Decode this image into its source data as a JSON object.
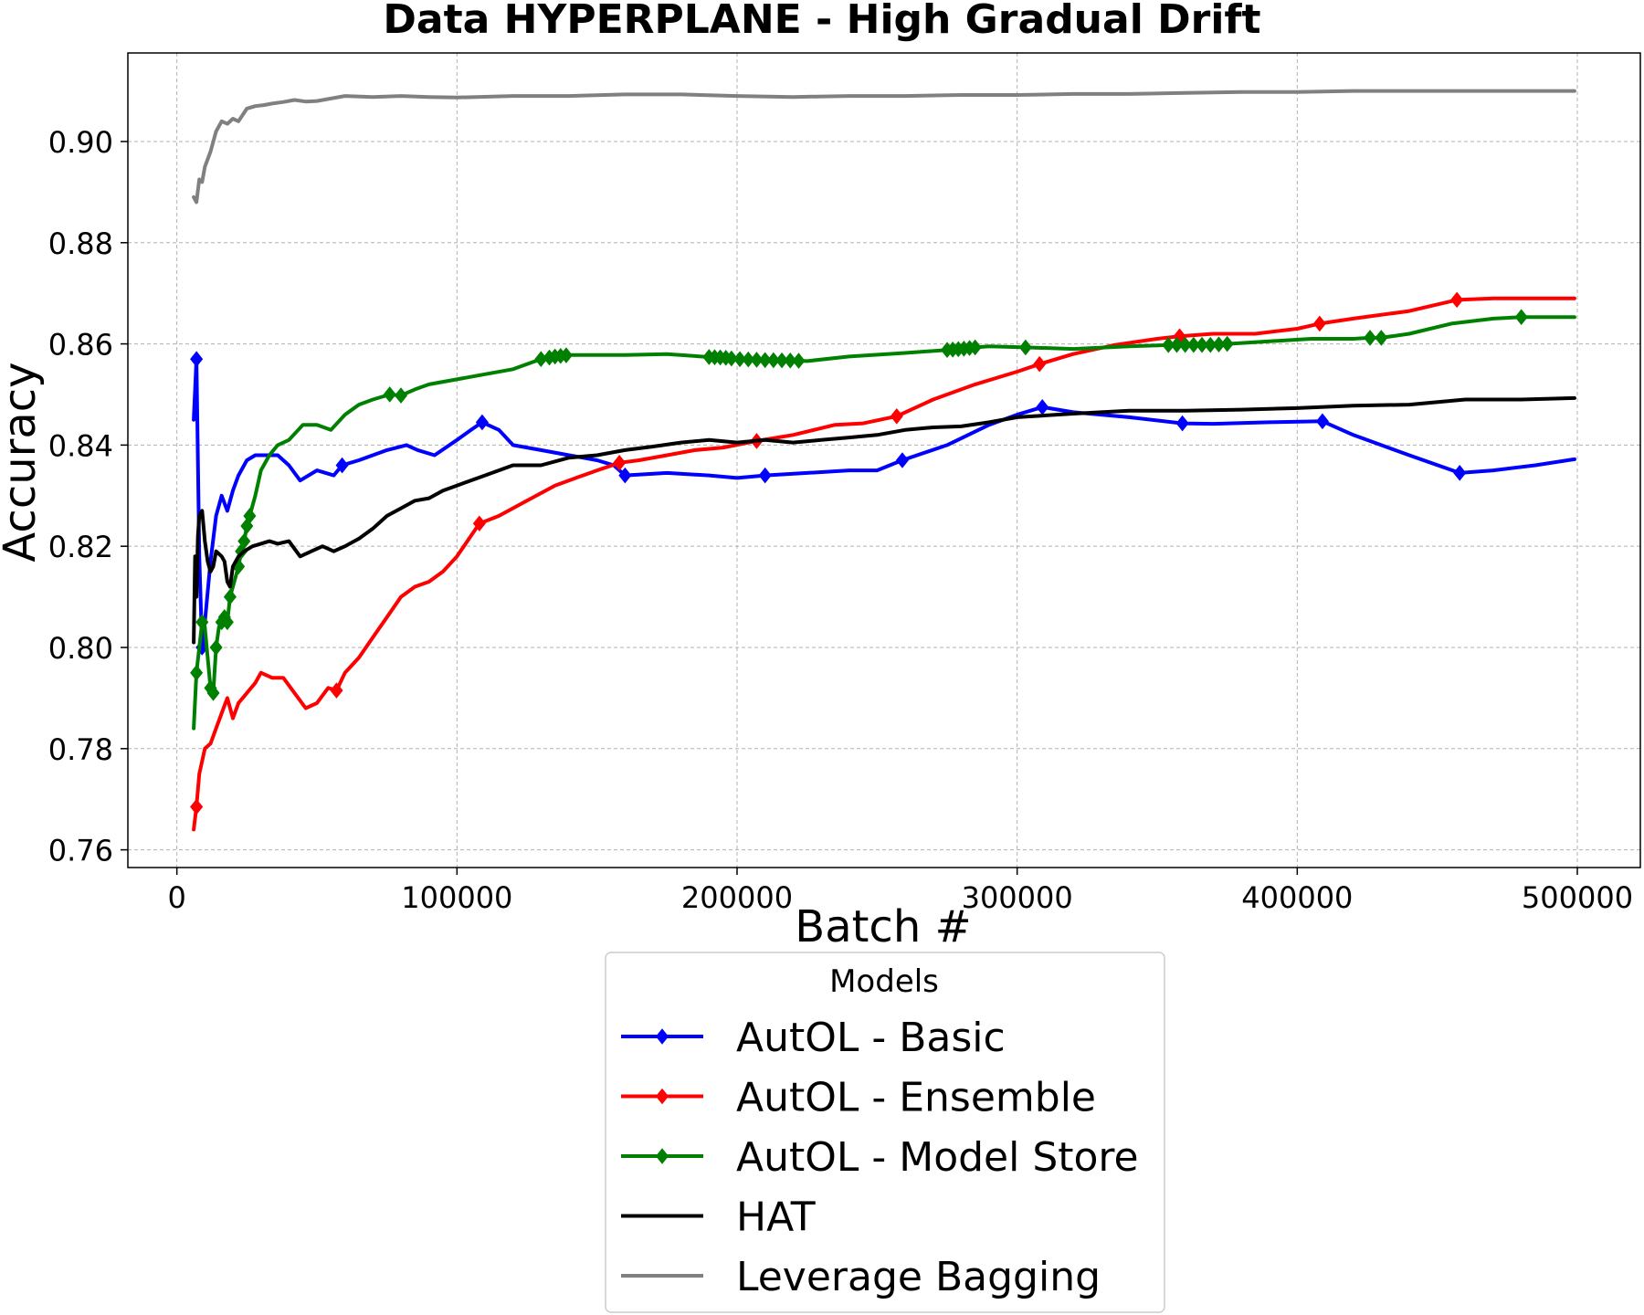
{
  "chart_data": {
    "type": "line",
    "title": "Data HYPERPLANE - High Gradual Drift",
    "xlabel": "Batch #",
    "ylabel": "Accuracy",
    "xlim": [
      -17500,
      522500
    ],
    "ylim": [
      0.7565,
      0.9175
    ],
    "xticks": [
      0,
      100000,
      200000,
      300000,
      400000,
      500000
    ],
    "yticks": [
      0.76,
      0.78,
      0.8,
      0.82,
      0.84,
      0.86,
      0.88,
      0.9
    ],
    "ytick_labels": [
      "0.76",
      "0.78",
      "0.80",
      "0.82",
      "0.84",
      "0.86",
      "0.88",
      "0.90"
    ],
    "grid": true,
    "legend": {
      "title": "Models",
      "placement": "below"
    },
    "series": [
      {
        "name": "AutOL - Basic",
        "color": "#0000ff",
        "marker": "diamond",
        "x": [
          6000,
          7000,
          8000,
          9000,
          10000,
          12000,
          14000,
          16000,
          18000,
          20000,
          22000,
          25000,
          28000,
          32000,
          36000,
          40000,
          44000,
          50000,
          56000,
          59000,
          65000,
          75000,
          82000,
          86000,
          92000,
          100000,
          105000,
          109000,
          115000,
          120000,
          130000,
          140000,
          150000,
          156000,
          160000,
          175000,
          190000,
          200000,
          210000,
          225000,
          240000,
          250000,
          259000,
          275000,
          290000,
          300000,
          309000,
          320000,
          340000,
          359000,
          370000,
          390000,
          409000,
          420000,
          440000,
          458000,
          470000,
          485000,
          499000
        ],
        "y": [
          0.845,
          0.857,
          0.818,
          0.8,
          0.805,
          0.817,
          0.826,
          0.83,
          0.827,
          0.831,
          0.834,
          0.837,
          0.838,
          0.838,
          0.838,
          0.836,
          0.833,
          0.835,
          0.834,
          0.836,
          0.837,
          0.839,
          0.84,
          0.839,
          0.838,
          0.841,
          0.843,
          0.8445,
          0.843,
          0.84,
          0.839,
          0.838,
          0.837,
          0.836,
          0.834,
          0.8345,
          0.834,
          0.8335,
          0.834,
          0.8345,
          0.835,
          0.835,
          0.837,
          0.84,
          0.844,
          0.846,
          0.8475,
          0.8465,
          0.8455,
          0.8443,
          0.8442,
          0.8445,
          0.8447,
          0.842,
          0.838,
          0.8345,
          0.835,
          0.836,
          0.8372
        ],
        "markers_x": [
          7000,
          9000,
          59000,
          109000,
          160000,
          210000,
          259000,
          309000,
          359000,
          409000,
          458000
        ]
      },
      {
        "name": "AutOL - Ensemble",
        "color": "#ff0000",
        "marker": "diamond",
        "x": [
          6000,
          7000,
          8000,
          10000,
          12000,
          14000,
          16000,
          18000,
          20000,
          22000,
          25000,
          28000,
          30000,
          34000,
          38000,
          42000,
          46000,
          50000,
          54000,
          57000,
          60000,
          65000,
          70000,
          75000,
          80000,
          85000,
          90000,
          95000,
          100000,
          108000,
          115000,
          125000,
          135000,
          145000,
          150000,
          158000,
          165000,
          175000,
          185000,
          195000,
          207000,
          220000,
          235000,
          245000,
          257000,
          270000,
          285000,
          300000,
          308000,
          320000,
          335000,
          350000,
          358000,
          370000,
          385000,
          400000,
          408000,
          420000,
          440000,
          457000,
          470000,
          485000,
          499000
        ],
        "y": [
          0.764,
          0.7685,
          0.775,
          0.78,
          0.781,
          0.784,
          0.787,
          0.79,
          0.786,
          0.789,
          0.791,
          0.793,
          0.795,
          0.794,
          0.794,
          0.791,
          0.788,
          0.789,
          0.792,
          0.7915,
          0.795,
          0.798,
          0.802,
          0.806,
          0.81,
          0.812,
          0.813,
          0.815,
          0.818,
          0.8245,
          0.826,
          0.829,
          0.832,
          0.834,
          0.835,
          0.8365,
          0.837,
          0.838,
          0.839,
          0.8395,
          0.8408,
          0.842,
          0.844,
          0.8443,
          0.8457,
          0.849,
          0.852,
          0.8545,
          0.856,
          0.858,
          0.8598,
          0.861,
          0.8615,
          0.862,
          0.862,
          0.863,
          0.864,
          0.865,
          0.8665,
          0.8687,
          0.869,
          0.869,
          0.869
        ],
        "markers_x": [
          7000,
          57000,
          108000,
          158000,
          207000,
          257000,
          308000,
          358000,
          408000,
          457000
        ]
      },
      {
        "name": "AutOL - Model Store",
        "color": "#008000",
        "marker": "diamond",
        "x": [
          6000,
          7000,
          8000,
          9000,
          10000,
          11000,
          12000,
          13000,
          14000,
          15000,
          16000,
          17000,
          18000,
          19000,
          20000,
          22000,
          23000,
          24000,
          25000,
          26000,
          28000,
          30000,
          33000,
          36000,
          40000,
          45000,
          50000,
          55000,
          60000,
          65000,
          70000,
          76000,
          80000,
          85000,
          90000,
          100000,
          110000,
          120000,
          130000,
          135000,
          140000,
          150000,
          160000,
          175000,
          190000,
          195000,
          200000,
          210000,
          220000,
          225000,
          240000,
          260000,
          275000,
          280000,
          285000,
          290000,
          303000,
          320000,
          340000,
          355000,
          360000,
          365000,
          370000,
          375000,
          390000,
          405000,
          420000,
          426000,
          430000,
          440000,
          455000,
          470000,
          480000,
          490000,
          499000
        ],
        "y": [
          0.784,
          0.795,
          0.8,
          0.805,
          0.804,
          0.798,
          0.792,
          0.791,
          0.8,
          0.804,
          0.805,
          0.806,
          0.805,
          0.81,
          0.812,
          0.816,
          0.819,
          0.821,
          0.824,
          0.826,
          0.83,
          0.835,
          0.838,
          0.84,
          0.841,
          0.844,
          0.844,
          0.843,
          0.846,
          0.848,
          0.849,
          0.85,
          0.8498,
          0.851,
          0.852,
          0.853,
          0.854,
          0.855,
          0.857,
          0.8575,
          0.8578,
          0.8578,
          0.8578,
          0.858,
          0.8574,
          0.8573,
          0.857,
          0.8568,
          0.8567,
          0.8566,
          0.8575,
          0.8582,
          0.8588,
          0.859,
          0.8593,
          0.8595,
          0.8593,
          0.859,
          0.8595,
          0.8598,
          0.8598,
          0.8598,
          0.8598,
          0.86,
          0.8605,
          0.861,
          0.861,
          0.8612,
          0.8612,
          0.862,
          0.864,
          0.865,
          0.8653,
          0.8653,
          0.8653
        ],
        "markers_x": [
          7000,
          9000,
          12000,
          13000,
          14000,
          16000,
          17000,
          18000,
          19000,
          22000,
          23000,
          24000,
          25000,
          26000,
          76000,
          80000,
          130000,
          133000,
          135000,
          137000,
          139000,
          190000,
          192000,
          194000,
          196000,
          198000,
          201000,
          204000,
          207000,
          210000,
          213000,
          216000,
          219000,
          222000,
          275000,
          277000,
          279000,
          281000,
          283000,
          285000,
          303000,
          354000,
          357000,
          360000,
          363000,
          366000,
          369000,
          372000,
          375000,
          426000,
          430000,
          480000
        ]
      },
      {
        "name": "HAT",
        "color": "#000000",
        "marker": "none",
        "x": [
          6000,
          6500,
          7000,
          7500,
          8000,
          9000,
          10000,
          11000,
          12000,
          13000,
          14000,
          15000,
          16000,
          17000,
          18000,
          19000,
          20000,
          22000,
          24000,
          27000,
          30000,
          33000,
          36000,
          40000,
          44000,
          48000,
          52000,
          56000,
          60000,
          65000,
          70000,
          75000,
          80000,
          85000,
          90000,
          95000,
          100000,
          110000,
          120000,
          130000,
          140000,
          150000,
          160000,
          170000,
          180000,
          190000,
          200000,
          210000,
          220000,
          230000,
          240000,
          250000,
          260000,
          270000,
          280000,
          290000,
          300000,
          320000,
          340000,
          360000,
          380000,
          400000,
          420000,
          440000,
          460000,
          480000,
          499000
        ],
        "y": [
          0.801,
          0.818,
          0.81,
          0.822,
          0.826,
          0.827,
          0.821,
          0.817,
          0.815,
          0.816,
          0.819,
          0.8185,
          0.818,
          0.817,
          0.813,
          0.812,
          0.816,
          0.818,
          0.819,
          0.82,
          0.8205,
          0.821,
          0.8205,
          0.821,
          0.818,
          0.819,
          0.82,
          0.819,
          0.82,
          0.8215,
          0.8235,
          0.826,
          0.8275,
          0.829,
          0.8295,
          0.831,
          0.832,
          0.834,
          0.836,
          0.836,
          0.8375,
          0.838,
          0.839,
          0.8397,
          0.8405,
          0.841,
          0.8405,
          0.841,
          0.8405,
          0.841,
          0.8415,
          0.842,
          0.843,
          0.8435,
          0.8437,
          0.8445,
          0.8455,
          0.8462,
          0.8468,
          0.8468,
          0.847,
          0.8473,
          0.8478,
          0.848,
          0.849,
          0.849,
          0.8493
        ],
        "markers_x": []
      },
      {
        "name": "Leverage Bagging",
        "color": "#808080",
        "marker": "none",
        "x": [
          6000,
          7000,
          8000,
          9000,
          10000,
          12000,
          14000,
          16000,
          18000,
          20000,
          22000,
          25000,
          28000,
          31000,
          34000,
          38000,
          42000,
          46000,
          50000,
          55000,
          60000,
          70000,
          80000,
          90000,
          100000,
          120000,
          140000,
          160000,
          180000,
          200000,
          220000,
          240000,
          260000,
          280000,
          300000,
          320000,
          340000,
          360000,
          380000,
          400000,
          420000,
          440000,
          460000,
          480000,
          499000
        ],
        "y": [
          0.889,
          0.888,
          0.8925,
          0.892,
          0.895,
          0.898,
          0.902,
          0.904,
          0.9035,
          0.9045,
          0.904,
          0.9065,
          0.907,
          0.9072,
          0.9075,
          0.9078,
          0.9082,
          0.9079,
          0.908,
          0.9085,
          0.909,
          0.9088,
          0.909,
          0.9088,
          0.9087,
          0.909,
          0.909,
          0.9093,
          0.9093,
          0.909,
          0.9088,
          0.909,
          0.909,
          0.9092,
          0.9092,
          0.9094,
          0.9094,
          0.9096,
          0.9098,
          0.9098,
          0.91,
          0.91,
          0.91,
          0.91,
          0.91
        ],
        "markers_x": []
      }
    ]
  }
}
